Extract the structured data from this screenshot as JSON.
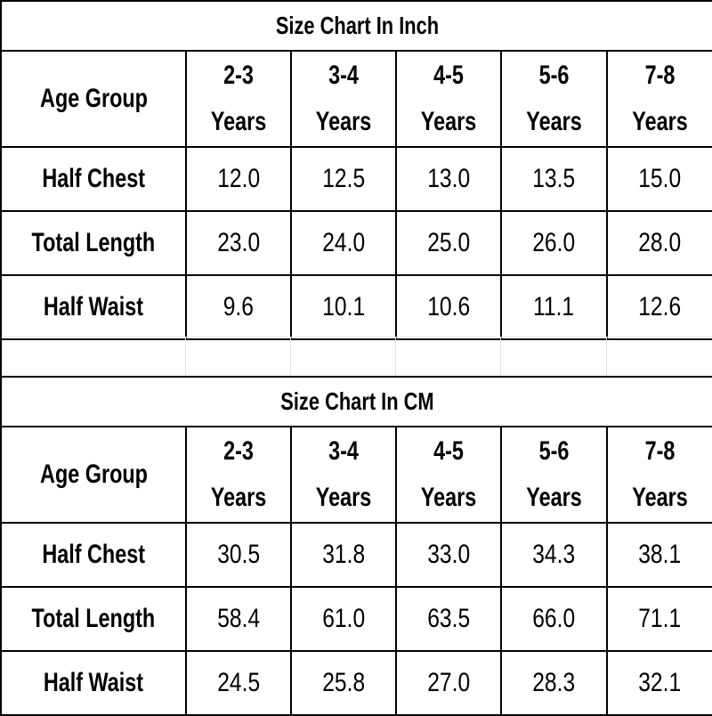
{
  "charts": [
    {
      "title": "Size Chart In Inch",
      "header_label": "Age Group",
      "columns": [
        {
          "top": "2-3",
          "bottom": "Years"
        },
        {
          "top": "3-4",
          "bottom": "Years"
        },
        {
          "top": "4-5",
          "bottom": "Years"
        },
        {
          "top": "5-6",
          "bottom": "Years"
        },
        {
          "top": "7-8",
          "bottom": "Years"
        }
      ],
      "rows": [
        {
          "label": "Half Chest",
          "values": [
            "12.0",
            "12.5",
            "13.0",
            "13.5",
            "15.0"
          ]
        },
        {
          "label": "Total Length",
          "values": [
            "23.0",
            "24.0",
            "25.0",
            "26.0",
            "28.0"
          ]
        },
        {
          "label": "Half Waist",
          "values": [
            "9.6",
            "10.1",
            "10.6",
            "11.1",
            "12.6"
          ]
        }
      ]
    },
    {
      "title": "Size Chart In CM",
      "header_label": "Age Group",
      "columns": [
        {
          "top": "2-3",
          "bottom": "Years"
        },
        {
          "top": "3-4",
          "bottom": "Years"
        },
        {
          "top": "4-5",
          "bottom": "Years"
        },
        {
          "top": "5-6",
          "bottom": "Years"
        },
        {
          "top": "7-8",
          "bottom": "Years"
        }
      ],
      "rows": [
        {
          "label": "Half Chest",
          "values": [
            "30.5",
            "31.8",
            "33.0",
            "34.3",
            "38.1"
          ]
        },
        {
          "label": "Total Length",
          "values": [
            "58.4",
            "61.0",
            "63.5",
            "66.0",
            "71.1"
          ]
        },
        {
          "label": "Half Waist",
          "values": [
            "24.5",
            "25.8",
            "27.0",
            "28.3",
            "32.1"
          ]
        }
      ]
    }
  ]
}
